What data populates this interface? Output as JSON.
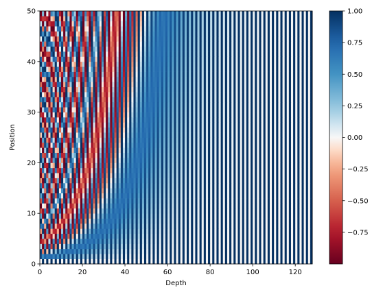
{
  "chart_data": {
    "type": "heatmap",
    "title": "",
    "xlabel": "Depth",
    "ylabel": "Position",
    "xlim": [
      0,
      128
    ],
    "ylim": [
      0,
      50
    ],
    "x_ticks": [
      0,
      20,
      40,
      60,
      80,
      100,
      120
    ],
    "y_ticks": [
      0,
      10,
      20,
      30,
      40,
      50
    ],
    "n_positions": 50,
    "n_depth": 128,
    "value_range": [
      -1,
      1
    ],
    "colormap": "RdBu",
    "colorbar": {
      "ticks": [
        "1.00",
        "0.75",
        "0.50",
        "0.25",
        "0.00",
        "−0.25",
        "−0.50",
        "−0.75"
      ],
      "tick_values": [
        1.0,
        0.75,
        0.5,
        0.25,
        0.0,
        -0.25,
        -0.5,
        -0.75
      ],
      "min": -1.0,
      "max": 1.0
    },
    "grid": false,
    "colors": {
      "neg_dark": "#67001f",
      "neg_mid": "#d6604d",
      "zero": "#f7f7f7",
      "pos_mid": "#4393c3",
      "pos_dark": "#053061"
    }
  }
}
